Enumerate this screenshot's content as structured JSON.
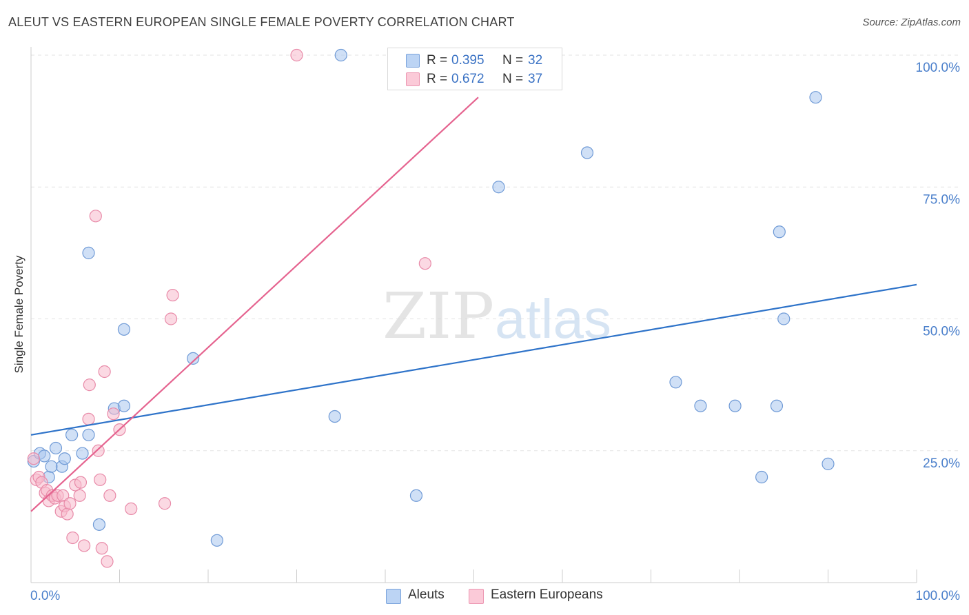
{
  "chart_data": {
    "type": "scatter",
    "title": "ALEUT VS EASTERN EUROPEAN SINGLE FEMALE POVERTY CORRELATION CHART",
    "source": "Source: ZipAtlas.com",
    "ylabel": "Single Female Poverty",
    "xlabel": "",
    "xlim": [
      0,
      100
    ],
    "ylim": [
      0,
      100
    ],
    "x_tick_labels": [
      "0.0%",
      "100.0%"
    ],
    "y_tick_labels": [
      "25.0%",
      "50.0%",
      "75.0%",
      "100.0%"
    ],
    "y_tick_values": [
      25,
      50,
      75,
      100
    ],
    "watermark": {
      "zip": "ZIP",
      "atlas": "atlas"
    },
    "legend_top": [
      {
        "r_label": "R =",
        "r_value": "0.395",
        "n_label": "N =",
        "n_value": "32"
      },
      {
        "r_label": "R =",
        "r_value": "0.672",
        "n_label": "N =",
        "n_value": "37"
      }
    ],
    "series": [
      {
        "name": "Aleuts",
        "color": "#a9c6ee",
        "stroke": "#6f9ad6",
        "line_color": "#2e73c9",
        "trend": {
          "x0": 0,
          "y0": 28.0,
          "x1": 100,
          "y1": 56.5
        },
        "points": [
          [
            0.3,
            23.0
          ],
          [
            1.0,
            24.5
          ],
          [
            1.5,
            24.0
          ],
          [
            2.0,
            20.0
          ],
          [
            2.3,
            22.0
          ],
          [
            2.8,
            25.5
          ],
          [
            3.5,
            22.0
          ],
          [
            3.8,
            23.5
          ],
          [
            4.6,
            28.0
          ],
          [
            5.8,
            24.5
          ],
          [
            6.5,
            28.0
          ],
          [
            6.5,
            62.5
          ],
          [
            7.7,
            11.0
          ],
          [
            9.4,
            33.0
          ],
          [
            10.5,
            33.5
          ],
          [
            10.5,
            48.0
          ],
          [
            18.3,
            42.5
          ],
          [
            21.0,
            8.0
          ],
          [
            34.3,
            31.5
          ],
          [
            35.0,
            100.0
          ],
          [
            43.5,
            16.5
          ],
          [
            52.8,
            75.0
          ],
          [
            62.8,
            81.5
          ],
          [
            72.8,
            38.0
          ],
          [
            75.6,
            33.5
          ],
          [
            79.5,
            33.5
          ],
          [
            82.5,
            20.0
          ],
          [
            84.2,
            33.5
          ],
          [
            84.5,
            66.5
          ],
          [
            85.0,
            50.0
          ],
          [
            88.6,
            92.0
          ],
          [
            90.0,
            22.5
          ]
        ]
      },
      {
        "name": "Eastern Europeans",
        "color": "#f7b9cc",
        "stroke": "#e88aa8",
        "line_color": "#e5638f",
        "trend": {
          "x0": 0,
          "y0": 13.5,
          "x1": 50.5,
          "y1": 92.0
        },
        "points": [
          [
            0.3,
            23.5
          ],
          [
            0.6,
            19.5
          ],
          [
            0.9,
            20.0
          ],
          [
            1.2,
            19.0
          ],
          [
            1.6,
            17.0
          ],
          [
            1.8,
            17.5
          ],
          [
            2.0,
            15.5
          ],
          [
            2.4,
            16.5
          ],
          [
            2.7,
            16.0
          ],
          [
            3.0,
            16.5
          ],
          [
            3.4,
            13.5
          ],
          [
            3.6,
            16.5
          ],
          [
            3.8,
            14.5
          ],
          [
            4.1,
            13.0
          ],
          [
            4.4,
            15.0
          ],
          [
            4.7,
            8.5
          ],
          [
            5.0,
            18.5
          ],
          [
            5.5,
            16.5
          ],
          [
            5.6,
            19.0
          ],
          [
            6.0,
            7.0
          ],
          [
            6.5,
            31.0
          ],
          [
            6.6,
            37.5
          ],
          [
            7.3,
            69.5
          ],
          [
            7.6,
            25.0
          ],
          [
            7.8,
            19.5
          ],
          [
            8.0,
            6.5
          ],
          [
            8.3,
            40.0
          ],
          [
            8.6,
            4.0
          ],
          [
            8.9,
            16.5
          ],
          [
            9.3,
            32.0
          ],
          [
            10.0,
            29.0
          ],
          [
            11.3,
            14.0
          ],
          [
            15.1,
            15.0
          ],
          [
            15.8,
            50.0
          ],
          [
            16.0,
            54.5
          ],
          [
            30.0,
            100.0
          ],
          [
            44.5,
            60.5
          ]
        ]
      }
    ]
  }
}
